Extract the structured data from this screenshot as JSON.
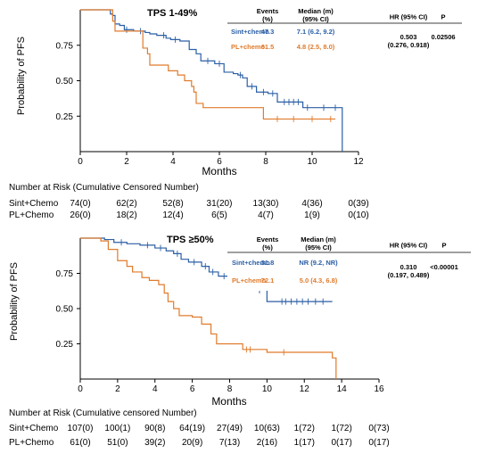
{
  "colors": {
    "sint": "#2b5fa6",
    "pl": "#e07b2c",
    "axis": "#000000"
  },
  "chart_data": [
    {
      "type": "line",
      "title": "TPS 1-49%",
      "xlabel": "Months",
      "ylabel": "Probability of PFS",
      "xlim": [
        0,
        12
      ],
      "ylim": [
        0,
        1.0
      ],
      "x_ticks": [
        0,
        2,
        4,
        6,
        8,
        10,
        12
      ],
      "y_ticks": [
        0.25,
        0.5,
        0.75
      ],
      "y_tick_labels": [
        "0.25",
        "0.50",
        "0.75"
      ],
      "grid": false,
      "series": [
        {
          "name": "Sint+chemo",
          "color_key": "sint",
          "steps": [
            [
              0,
              1.0
            ],
            [
              1.3,
              0.97
            ],
            [
              1.4,
              0.96
            ],
            [
              1.5,
              0.9
            ],
            [
              1.7,
              0.89
            ],
            [
              1.9,
              0.86
            ],
            [
              2.3,
              0.85
            ],
            [
              2.8,
              0.84
            ],
            [
              3.0,
              0.83
            ],
            [
              3.3,
              0.82
            ],
            [
              3.7,
              0.8
            ],
            [
              3.9,
              0.79
            ],
            [
              4.3,
              0.78
            ],
            [
              4.7,
              0.72
            ],
            [
              5.0,
              0.69
            ],
            [
              5.2,
              0.64
            ],
            [
              5.8,
              0.62
            ],
            [
              6.2,
              0.56
            ],
            [
              6.6,
              0.55
            ],
            [
              6.8,
              0.54
            ],
            [
              7.0,
              0.52
            ],
            [
              7.2,
              0.46
            ],
            [
              7.6,
              0.42
            ],
            [
              8.1,
              0.41
            ],
            [
              8.5,
              0.35
            ],
            [
              9.6,
              0.31
            ],
            [
              11.3,
              0.0
            ]
          ],
          "censor_x": [
            2.0,
            2.6,
            3.6,
            4.1,
            5.5,
            6.0,
            6.9,
            7.4,
            7.9,
            8.3,
            8.8,
            9.0,
            9.2,
            9.4,
            9.8,
            10.5,
            11.0
          ]
        },
        {
          "name": "PL+chemo",
          "color_key": "pl",
          "steps": [
            [
              0,
              1.0
            ],
            [
              1.4,
              0.92
            ],
            [
              1.5,
              0.85
            ],
            [
              2.7,
              0.73
            ],
            [
              2.9,
              0.69
            ],
            [
              3.0,
              0.61
            ],
            [
              3.8,
              0.57
            ],
            [
              4.2,
              0.54
            ],
            [
              4.5,
              0.5
            ],
            [
              4.8,
              0.46
            ],
            [
              4.9,
              0.42
            ],
            [
              5.0,
              0.34
            ],
            [
              5.3,
              0.31
            ],
            [
              7.9,
              0.23
            ],
            [
              11.0,
              0.23
            ]
          ],
          "censor_x": [
            8.5,
            9.2,
            10.0,
            10.8
          ]
        }
      ],
      "legend_table": {
        "headers": [
          "Events (%)",
          "Median (m) (95% CI)",
          "HR (95% CI)",
          "P"
        ],
        "header_lines": [
          [
            "Events",
            "(%)"
          ],
          [
            "Median (m)",
            "(95% CI)"
          ],
          [
            "HR (95% CI)"
          ],
          [
            "P"
          ]
        ],
        "rows": [
          {
            "name": "Sint+chemo",
            "events": "47.3",
            "median": "7.1 (6.2, 9.2)"
          },
          {
            "name": "PL+chemo",
            "events": "61.5",
            "median": "4.8 (2.5, 8.0)"
          }
        ],
        "hr": "0.503",
        "hr_ci": "(0.276, 0.918)",
        "p": "0.02506"
      },
      "risk_table": {
        "title": "Number at Risk (Cumulative Censored Number)",
        "rows": [
          {
            "label": "Sint+Chemo",
            "values": [
              "74(0)",
              "62(2)",
              "52(8)",
              "31(20)",
              "13(30)",
              "4(36)",
              "0(39)"
            ]
          },
          {
            "label": "PL+Chemo",
            "values": [
              "26(0)",
              "18(2)",
              "12(4)",
              "6(5)",
              "4(7)",
              "1(9)",
              "0(10)"
            ]
          }
        ]
      }
    },
    {
      "type": "line",
      "title": "TPS ≥50%",
      "xlabel": "Months",
      "ylabel": "Probability of PFS",
      "xlim": [
        0,
        16
      ],
      "ylim": [
        0,
        1.0
      ],
      "x_ticks": [
        0,
        2,
        4,
        6,
        8,
        10,
        12,
        14,
        16
      ],
      "y_ticks": [
        0.25,
        0.5,
        0.75
      ],
      "y_tick_labels": [
        "0.25",
        "0.50",
        "0.75"
      ],
      "grid": false,
      "series": [
        {
          "name": "Sint+chemo",
          "color_key": "sint",
          "steps": [
            [
              0,
              1.0
            ],
            [
              1.3,
              0.99
            ],
            [
              1.8,
              0.97
            ],
            [
              2.5,
              0.96
            ],
            [
              3.2,
              0.95
            ],
            [
              4.0,
              0.93
            ],
            [
              4.6,
              0.91
            ],
            [
              5.0,
              0.89
            ],
            [
              5.4,
              0.85
            ],
            [
              5.8,
              0.83
            ],
            [
              6.5,
              0.8
            ],
            [
              6.9,
              0.76
            ],
            [
              7.4,
              0.73
            ],
            [
              8.0,
              0.71
            ],
            [
              8.5,
              0.68
            ],
            [
              9.3,
              0.63
            ],
            [
              10.0,
              0.55
            ],
            [
              13.5,
              0.55
            ]
          ],
          "censor_x": [
            2.2,
            3.6,
            4.3,
            5.2,
            6.1,
            6.7,
            7.1,
            7.7,
            8.2,
            8.8,
            9.6,
            10.8,
            11.0,
            11.3,
            11.6,
            11.9,
            12.2,
            12.6,
            13.0
          ]
        },
        {
          "name": "PL+chemo",
          "color_key": "pl",
          "steps": [
            [
              0,
              1.0
            ],
            [
              1.1,
              0.98
            ],
            [
              1.5,
              0.92
            ],
            [
              2.0,
              0.84
            ],
            [
              2.5,
              0.8
            ],
            [
              2.8,
              0.76
            ],
            [
              3.3,
              0.72
            ],
            [
              3.7,
              0.7
            ],
            [
              4.2,
              0.67
            ],
            [
              4.5,
              0.61
            ],
            [
              4.7,
              0.55
            ],
            [
              5.0,
              0.5
            ],
            [
              5.3,
              0.45
            ],
            [
              6.0,
              0.44
            ],
            [
              6.5,
              0.39
            ],
            [
              7.0,
              0.32
            ],
            [
              7.3,
              0.25
            ],
            [
              8.7,
              0.21
            ],
            [
              10.0,
              0.19
            ],
            [
              13.5,
              0.15
            ],
            [
              13.7,
              0.0
            ]
          ],
          "censor_x": [
            8.9,
            9.1,
            10.9
          ]
        }
      ],
      "legend_table": {
        "headers": [
          "Events (%)",
          "Median (m) (95% CI)",
          "HR (95% CI)",
          "P"
        ],
        "header_lines": [
          [
            "Events",
            "(%)"
          ],
          [
            "Median (m)",
            "(95% CI)"
          ],
          [
            "HR (95% CI)"
          ],
          [
            "P"
          ]
        ],
        "rows": [
          {
            "name": "Sint+chemo",
            "events": "31.8",
            "median": "NR (9.2, NR)"
          },
          {
            "name": "PL+chemo",
            "events": "72.1",
            "median": "5.0 (4.3, 6.8)"
          }
        ],
        "hr": "0.310",
        "hr_ci": "(0.197, 0.489)",
        "p": "<0.00001"
      },
      "risk_table": {
        "title": "Number at Risk (Cumulative censored Number)",
        "rows": [
          {
            "label": "Sint+Chemo",
            "values": [
              "107(0)",
              "100(1)",
              "90(8)",
              "64(19)",
              "27(49)",
              "10(63)",
              "1(72)",
              "1(72)",
              "0(73)"
            ]
          },
          {
            "label": "PL+Chemo",
            "values": [
              "61(0)",
              "51(0)",
              "39(2)",
              "20(9)",
              "7(13)",
              "2(16)",
              "1(17)",
              "0(17)",
              "0(17)"
            ]
          }
        ]
      }
    }
  ]
}
